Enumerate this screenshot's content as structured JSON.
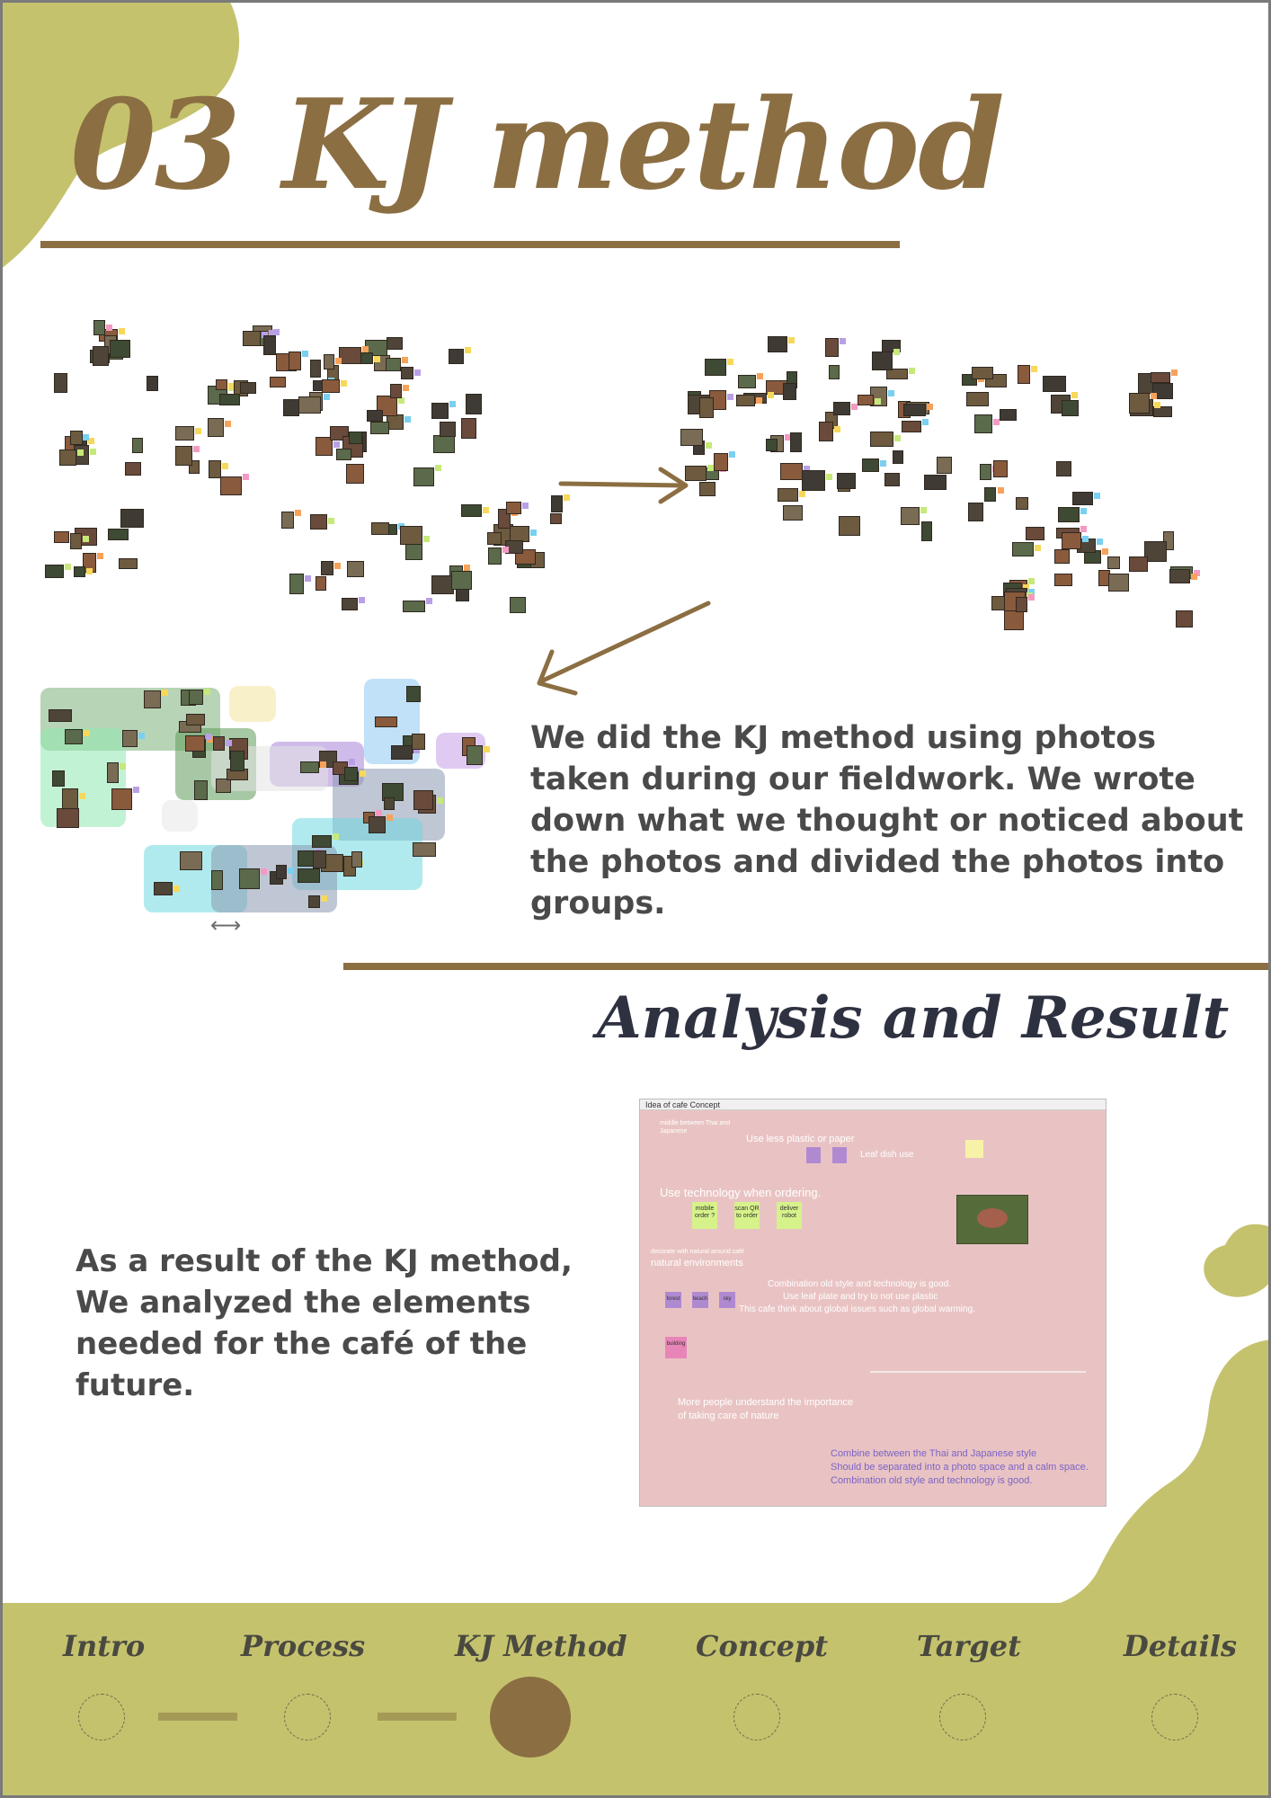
{
  "title": {
    "number": "03",
    "text": "KJ method"
  },
  "kj_description": "We did the KJ method using photos taken during our fieldwork. We wrote down what we thought or noticed about the photos and divided the photos into groups.",
  "analysis_heading": "Analysis and Result",
  "result_description": "As a result of the KJ method, We analyzed the elements needed for the café of the future.",
  "concept_board": {
    "title": "Idea of cafe Concept",
    "note_top_left": "middle between Thai and Japanese",
    "use_less_plastic": "Use less plastic or paper",
    "leaf_dish_use": "Leaf dish use",
    "use_technology": "Use technology when ordering.",
    "notes": [
      "mobile order ?",
      "scan QR to order",
      "deliver robot"
    ],
    "decorate": "decorate with natural around café",
    "natural_environments": "natural environments",
    "combination_1": "Combination old style and technology is good.",
    "leaf_plate": "Use leaf plate and try to not use plastic",
    "global_issues": "This cafe think about global issues such as global warming.",
    "small_notes": [
      "forest",
      "beach",
      "sky",
      "building"
    ],
    "more_people": "More people understand the importance of taking care of nature",
    "purple_lines": [
      "Combine between the Thai and Japanese style",
      "Should be separated into a photo space and a calm space.",
      "Combination old style and technology is good."
    ]
  },
  "nav": {
    "items": [
      {
        "label": "Intro",
        "active": false
      },
      {
        "label": "Process",
        "active": false
      },
      {
        "label": "KJ Method",
        "active": true
      },
      {
        "label": "Concept",
        "active": false
      },
      {
        "label": "Target",
        "active": false
      },
      {
        "label": "Details",
        "active": false
      }
    ]
  },
  "colors": {
    "accent_brown": "#8b6e42",
    "olive": "#c5c26e",
    "text_dark": "#4a4a4a",
    "concept_bg": "#e9c3c3"
  }
}
